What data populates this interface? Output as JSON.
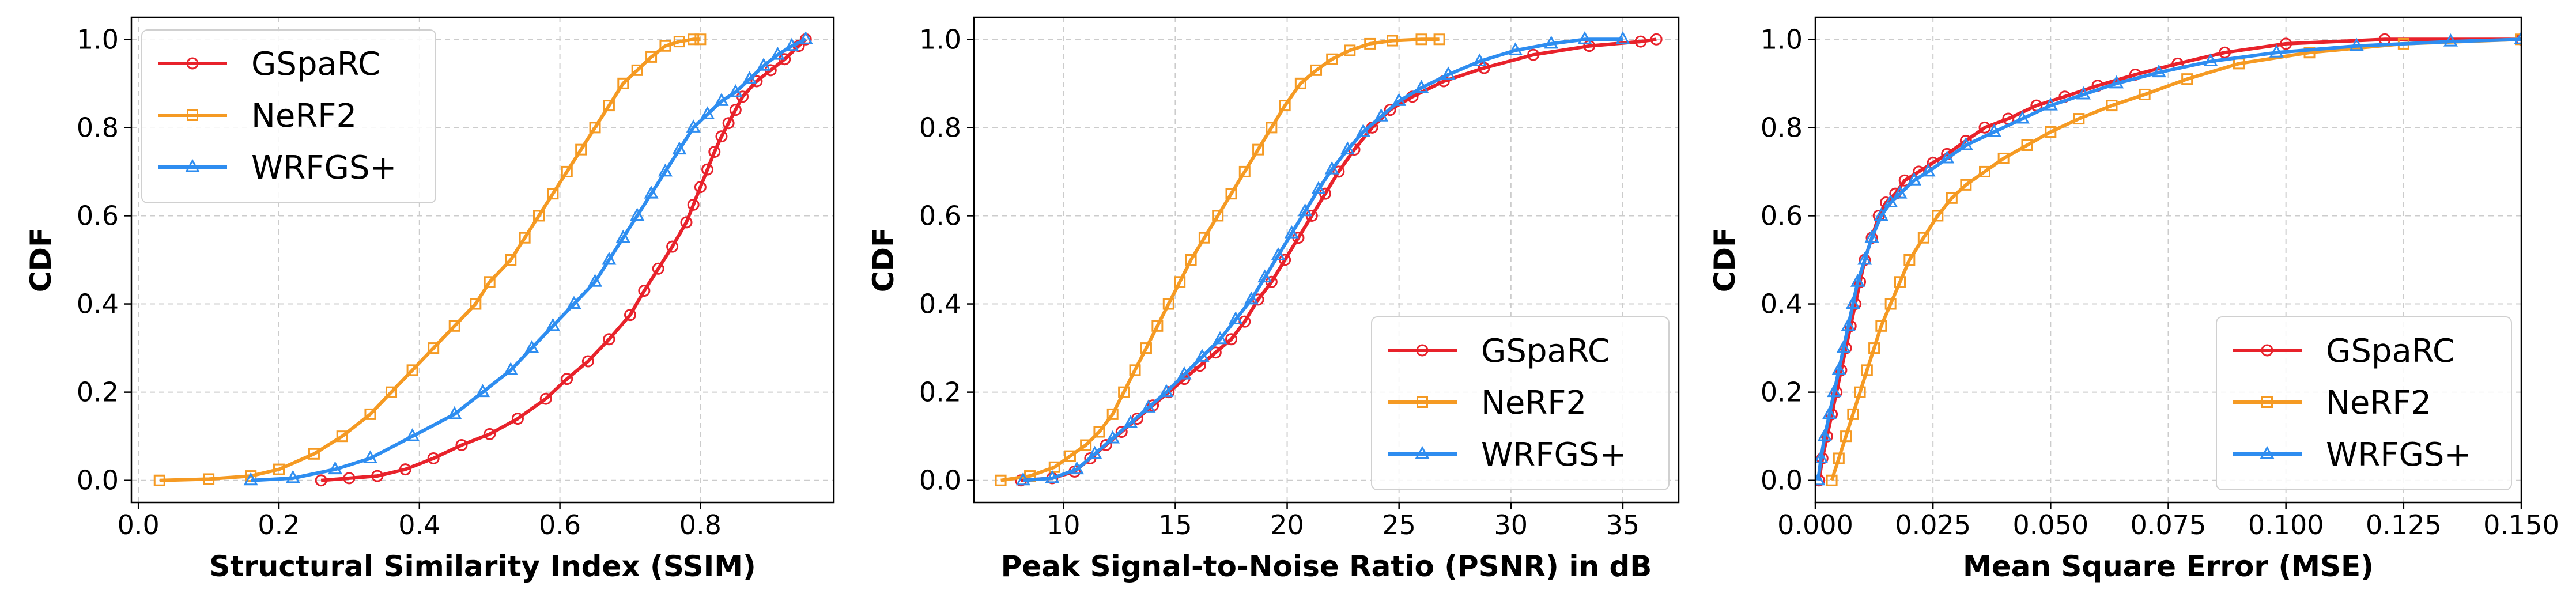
{
  "chart_data": [
    {
      "type": "line",
      "title": "",
      "xlabel": "Structural Similarity Index (SSIM)",
      "ylabel": "CDF",
      "xlim": [
        -0.01,
        0.99
      ],
      "ylim": [
        -0.05,
        1.05
      ],
      "xticks": [
        0.0,
        0.2,
        0.4,
        0.6,
        0.8
      ],
      "xtick_labels": [
        "0.0",
        "0.2",
        "0.4",
        "0.6",
        "0.8"
      ],
      "yticks": [
        0.0,
        0.2,
        0.4,
        0.6,
        0.8,
        1.0
      ],
      "ytick_labels": [
        "0.0",
        "0.2",
        "0.4",
        "0.6",
        "0.8",
        "1.0"
      ],
      "grid": true,
      "legend_position": "top-left",
      "series": [
        {
          "name": "GSpaRC",
          "color": "#e8222b",
          "marker": "circle",
          "x": [
            0.26,
            0.3,
            0.34,
            0.38,
            0.42,
            0.46,
            0.5,
            0.54,
            0.58,
            0.61,
            0.64,
            0.67,
            0.7,
            0.72,
            0.74,
            0.76,
            0.78,
            0.79,
            0.8,
            0.81,
            0.82,
            0.83,
            0.84,
            0.85,
            0.86,
            0.88,
            0.9,
            0.92,
            0.94,
            0.95
          ],
          "y": [
            0.0,
            0.005,
            0.01,
            0.025,
            0.05,
            0.08,
            0.105,
            0.14,
            0.185,
            0.23,
            0.27,
            0.32,
            0.375,
            0.43,
            0.48,
            0.53,
            0.585,
            0.625,
            0.665,
            0.705,
            0.745,
            0.78,
            0.81,
            0.84,
            0.87,
            0.905,
            0.93,
            0.955,
            0.985,
            1.0
          ]
        },
        {
          "name": "NeRF2",
          "color": "#f59a23",
          "marker": "square",
          "x": [
            0.03,
            0.1,
            0.16,
            0.2,
            0.25,
            0.29,
            0.33,
            0.36,
            0.39,
            0.42,
            0.45,
            0.48,
            0.5,
            0.53,
            0.55,
            0.57,
            0.59,
            0.61,
            0.63,
            0.65,
            0.67,
            0.69,
            0.71,
            0.73,
            0.75,
            0.77,
            0.79,
            0.8
          ],
          "y": [
            0.0,
            0.003,
            0.01,
            0.025,
            0.06,
            0.1,
            0.15,
            0.2,
            0.25,
            0.3,
            0.35,
            0.4,
            0.45,
            0.5,
            0.55,
            0.6,
            0.65,
            0.7,
            0.75,
            0.8,
            0.85,
            0.9,
            0.93,
            0.96,
            0.985,
            0.995,
            1.0,
            1.0
          ]
        },
        {
          "name": "WRFGS+",
          "color": "#2e8df0",
          "marker": "triangle",
          "x": [
            0.16,
            0.22,
            0.28,
            0.33,
            0.39,
            0.45,
            0.49,
            0.53,
            0.56,
            0.59,
            0.62,
            0.65,
            0.67,
            0.69,
            0.71,
            0.73,
            0.75,
            0.77,
            0.79,
            0.81,
            0.83,
            0.85,
            0.87,
            0.89,
            0.91,
            0.93,
            0.95
          ],
          "y": [
            0.0,
            0.005,
            0.025,
            0.05,
            0.1,
            0.15,
            0.2,
            0.25,
            0.3,
            0.35,
            0.4,
            0.45,
            0.5,
            0.55,
            0.6,
            0.65,
            0.7,
            0.75,
            0.8,
            0.83,
            0.86,
            0.88,
            0.91,
            0.94,
            0.965,
            0.985,
            1.0
          ]
        }
      ]
    },
    {
      "type": "line",
      "title": "",
      "xlabel": "Peak Signal-to-Noise Ratio (PSNR) in dB",
      "ylabel": "CDF",
      "xlim": [
        6.0,
        37.5
      ],
      "ylim": [
        -0.05,
        1.05
      ],
      "xticks": [
        10,
        15,
        20,
        25,
        30,
        35
      ],
      "xtick_labels": [
        "10",
        "15",
        "20",
        "25",
        "30",
        "35"
      ],
      "yticks": [
        0.0,
        0.2,
        0.4,
        0.6,
        0.8,
        1.0
      ],
      "ytick_labels": [
        "0.0",
        "0.2",
        "0.4",
        "0.6",
        "0.8",
        "1.0"
      ],
      "grid": true,
      "legend_position": "bottom-right",
      "series": [
        {
          "name": "GSpaRC",
          "color": "#e8222b",
          "marker": "circle",
          "x": [
            8.1,
            9.5,
            10.5,
            11.2,
            11.9,
            12.6,
            13.3,
            14.0,
            14.7,
            15.4,
            16.1,
            16.8,
            17.5,
            18.1,
            18.7,
            19.3,
            19.9,
            20.5,
            21.1,
            21.7,
            22.3,
            23.0,
            23.8,
            24.6,
            25.6,
            27.0,
            28.8,
            31.0,
            33.5,
            35.8,
            36.5
          ],
          "y": [
            0.0,
            0.005,
            0.02,
            0.05,
            0.08,
            0.11,
            0.14,
            0.17,
            0.2,
            0.23,
            0.26,
            0.29,
            0.32,
            0.36,
            0.41,
            0.45,
            0.5,
            0.55,
            0.6,
            0.65,
            0.7,
            0.75,
            0.8,
            0.84,
            0.87,
            0.905,
            0.935,
            0.965,
            0.985,
            0.995,
            1.0
          ]
        },
        {
          "name": "NeRF2",
          "color": "#f59a23",
          "marker": "square",
          "x": [
            7.2,
            8.5,
            9.6,
            10.3,
            11.0,
            11.6,
            12.2,
            12.7,
            13.2,
            13.7,
            14.2,
            14.7,
            15.2,
            15.7,
            16.3,
            16.9,
            17.5,
            18.1,
            18.7,
            19.3,
            19.9,
            20.6,
            21.3,
            22.0,
            22.8,
            23.7,
            24.7,
            26.0,
            26.8
          ],
          "y": [
            0.0,
            0.01,
            0.03,
            0.055,
            0.08,
            0.11,
            0.15,
            0.2,
            0.25,
            0.3,
            0.35,
            0.4,
            0.45,
            0.5,
            0.55,
            0.6,
            0.65,
            0.7,
            0.75,
            0.8,
            0.85,
            0.9,
            0.93,
            0.955,
            0.975,
            0.99,
            0.997,
            1.0,
            1.0
          ]
        },
        {
          "name": "WRFGS+",
          "color": "#2e8df0",
          "marker": "triangle",
          "x": [
            8.2,
            9.5,
            10.6,
            11.4,
            12.2,
            13.0,
            13.8,
            14.6,
            15.4,
            16.2,
            17.0,
            17.7,
            18.4,
            19.0,
            19.6,
            20.2,
            20.8,
            21.4,
            22.0,
            22.7,
            23.4,
            24.2,
            25.0,
            26.0,
            27.2,
            28.6,
            30.2,
            31.8,
            33.3,
            35.0
          ],
          "y": [
            0.0,
            0.005,
            0.025,
            0.06,
            0.095,
            0.13,
            0.165,
            0.2,
            0.24,
            0.28,
            0.32,
            0.365,
            0.41,
            0.46,
            0.51,
            0.56,
            0.61,
            0.66,
            0.705,
            0.75,
            0.79,
            0.825,
            0.86,
            0.89,
            0.92,
            0.95,
            0.975,
            0.99,
            1.0,
            1.0
          ]
        }
      ]
    },
    {
      "type": "line",
      "title": "",
      "xlabel": "Mean Square Error (MSE)",
      "ylabel": "CDF",
      "xlim": [
        0.0,
        0.15
      ],
      "ylim": [
        -0.05,
        1.05
      ],
      "xticks": [
        0.0,
        0.025,
        0.05,
        0.075,
        0.1,
        0.125,
        0.15
      ],
      "xtick_labels": [
        "0.000",
        "0.025",
        "0.050",
        "0.075",
        "0.100",
        "0.125",
        "0.150"
      ],
      "yticks": [
        0.0,
        0.2,
        0.4,
        0.6,
        0.8,
        1.0
      ],
      "ytick_labels": [
        "0.0",
        "0.2",
        "0.4",
        "0.6",
        "0.8",
        "1.0"
      ],
      "grid": true,
      "legend_position": "bottom-right",
      "series": [
        {
          "name": "GSpaRC",
          "color": "#e8222b",
          "marker": "circle",
          "x": [
            0.0008,
            0.0015,
            0.0025,
            0.0035,
            0.0045,
            0.0055,
            0.0065,
            0.0075,
            0.0085,
            0.0095,
            0.0105,
            0.012,
            0.0135,
            0.015,
            0.017,
            0.019,
            0.022,
            0.025,
            0.028,
            0.032,
            0.036,
            0.041,
            0.047,
            0.053,
            0.06,
            0.068,
            0.077,
            0.087,
            0.1,
            0.121,
            0.15
          ],
          "y": [
            0.0,
            0.05,
            0.1,
            0.15,
            0.2,
            0.25,
            0.3,
            0.35,
            0.4,
            0.45,
            0.5,
            0.55,
            0.6,
            0.63,
            0.65,
            0.68,
            0.7,
            0.72,
            0.74,
            0.77,
            0.8,
            0.82,
            0.85,
            0.87,
            0.895,
            0.92,
            0.945,
            0.97,
            0.99,
            1.0,
            1.0
          ]
        },
        {
          "name": "NeRF2",
          "color": "#f59a23",
          "marker": "square",
          "x": [
            0.0035,
            0.005,
            0.0065,
            0.008,
            0.0095,
            0.011,
            0.0125,
            0.014,
            0.016,
            0.018,
            0.02,
            0.023,
            0.026,
            0.029,
            0.032,
            0.036,
            0.04,
            0.045,
            0.05,
            0.056,
            0.063,
            0.07,
            0.079,
            0.09,
            0.105,
            0.125,
            0.15
          ],
          "y": [
            0.0,
            0.05,
            0.1,
            0.15,
            0.2,
            0.25,
            0.3,
            0.35,
            0.4,
            0.45,
            0.5,
            0.55,
            0.6,
            0.64,
            0.67,
            0.7,
            0.73,
            0.76,
            0.79,
            0.82,
            0.85,
            0.875,
            0.91,
            0.945,
            0.97,
            0.99,
            1.0
          ]
        },
        {
          "name": "WRFGS+",
          "color": "#2e8df0",
          "marker": "triangle",
          "x": [
            0.0006,
            0.0012,
            0.002,
            0.003,
            0.004,
            0.005,
            0.006,
            0.007,
            0.008,
            0.009,
            0.0105,
            0.012,
            0.014,
            0.016,
            0.018,
            0.021,
            0.024,
            0.028,
            0.032,
            0.038,
            0.044,
            0.05,
            0.057,
            0.064,
            0.073,
            0.084,
            0.098,
            0.115,
            0.135,
            0.15
          ],
          "y": [
            0.0,
            0.05,
            0.1,
            0.15,
            0.2,
            0.25,
            0.3,
            0.35,
            0.4,
            0.45,
            0.5,
            0.55,
            0.6,
            0.63,
            0.65,
            0.68,
            0.7,
            0.73,
            0.76,
            0.79,
            0.82,
            0.85,
            0.875,
            0.9,
            0.925,
            0.95,
            0.97,
            0.985,
            0.995,
            1.0
          ]
        }
      ]
    }
  ]
}
